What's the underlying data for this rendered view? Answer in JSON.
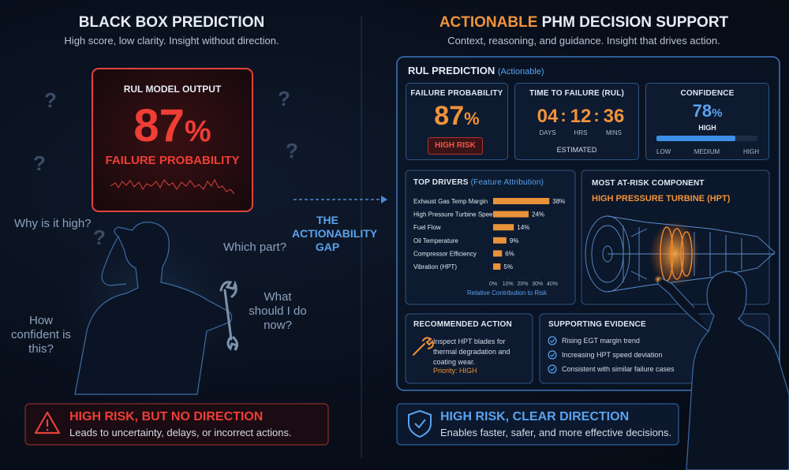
{
  "left": {
    "title": "BLACK BOX PREDICTION",
    "subtitle": "High score, low clarity.  Insight without direction.",
    "output": {
      "label": "RUL MODEL OUTPUT",
      "value": 87,
      "unit": "%",
      "caption": "FAILURE PROBABILITY"
    },
    "question_mark": "?",
    "questions": [
      "Why is it high?",
      "Which part?",
      "What should I do now?",
      "How confident is this?"
    ],
    "callout": {
      "title": "HIGH RISK, BUT NO DIRECTION",
      "text": "Leads to uncertainty, delays, or incorrect actions."
    }
  },
  "gap": {
    "label": "THE ACTIONABILITY GAP"
  },
  "right": {
    "title_highlight": "ACTIONABLE",
    "title_rest": "PHM DECISION SUPPORT",
    "subtitle": "Context, reasoning, and guidance.  Insight that drives action.",
    "panel": {
      "title": "RUL PREDICTION",
      "title_note": "(Actionable)",
      "failure": {
        "label": "FAILURE PROBABILITY",
        "value": 87,
        "unit": "%",
        "badge": "HIGH RISK"
      },
      "ttf": {
        "label": "TIME TO FAILURE (RUL)",
        "parts": [
          {
            "value": "04",
            "unit": "DAYS"
          },
          {
            "value": "12",
            "unit": "HRS"
          },
          {
            "value": "36",
            "unit": "MINS"
          }
        ],
        "separator": ":",
        "note": "ESTIMATED"
      },
      "confidence": {
        "label": "CONFIDENCE",
        "value": 78,
        "unit": "%",
        "level": "HIGH",
        "scale_labels": [
          "LOW",
          "MEDIUM",
          "HIGH"
        ]
      },
      "drivers": {
        "title": "TOP DRIVERS",
        "title_note": "(Feature Attribution)",
        "chart": {
          "type": "bar",
          "orientation": "horizontal",
          "categories": [
            "Exhaust Gas Temp Margin",
            "High Pressure Turbine Speed",
            "Fuel Flow",
            "Oil Temperature",
            "Compressor Efficiency",
            "Vibration (HPT)"
          ],
          "values": [
            38,
            24,
            14,
            9,
            6,
            5
          ],
          "value_labels": [
            "38%",
            "24%",
            "14%",
            "9%",
            "6%",
            "5%"
          ],
          "color": "#e8923a",
          "xlim": [
            0,
            40
          ],
          "xticks": [
            {
              "value": 0,
              "label": "0%"
            },
            {
              "value": 10,
              "label": "10%"
            },
            {
              "value": 20,
              "label": "20%"
            },
            {
              "value": 30,
              "label": "30%"
            },
            {
              "value": 40,
              "label": "40%"
            }
          ],
          "xlabel": "Relative Contribution to Risk"
        }
      },
      "component": {
        "label": "MOST AT-RISK COMPONENT",
        "name": "HIGH PRESSURE TURBINE (HPT)"
      },
      "action": {
        "label": "RECOMMENDED ACTION",
        "text": "Inspect HPT blades for thermal degradation and coating wear.",
        "priority": "Priority: HIGH"
      },
      "evidence": {
        "label": "SUPPORTING EVIDENCE",
        "items": [
          "Rising EGT margin trend",
          "Increasing HPT speed deviation",
          "Consistent with similar failure cases"
        ]
      }
    },
    "callout": {
      "title": "HIGH RISK, CLEAR DIRECTION",
      "text": "Enables faster, safer, and more effective decisions."
    }
  }
}
